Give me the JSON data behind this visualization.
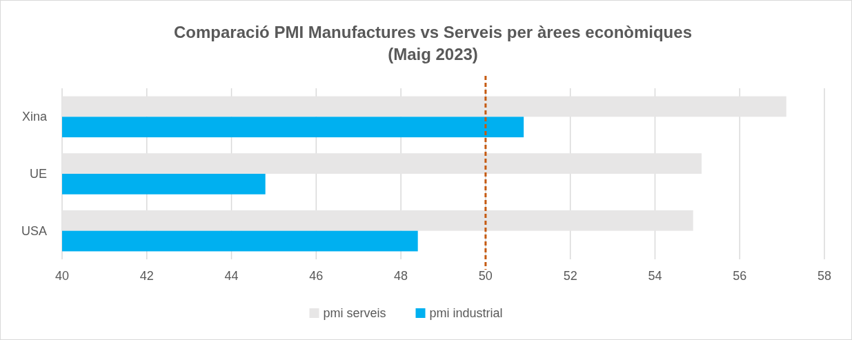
{
  "chart_data": {
    "type": "bar",
    "orientation": "horizontal",
    "title": "Comparació PMI Manufactures vs Serveis per àrees econòmiques (Maig 2023)",
    "categories": [
      "Xina",
      "UE",
      "USA"
    ],
    "series": [
      {
        "name": "pmi serveis",
        "color": "#e7e6e6",
        "values": [
          57.1,
          55.1,
          54.9
        ]
      },
      {
        "name": "pmi industrial",
        "color": "#00b0f0",
        "values": [
          50.9,
          44.8,
          48.4
        ]
      }
    ],
    "xlim": [
      40,
      58
    ],
    "xticks": [
      40,
      42,
      44,
      46,
      48,
      50,
      52,
      54,
      56,
      58
    ],
    "grid": "x",
    "legend": "bottom",
    "ref_lines": [
      {
        "axis": "x",
        "value": 50,
        "color": "#c55a11",
        "line_style": "dashed"
      }
    ]
  }
}
